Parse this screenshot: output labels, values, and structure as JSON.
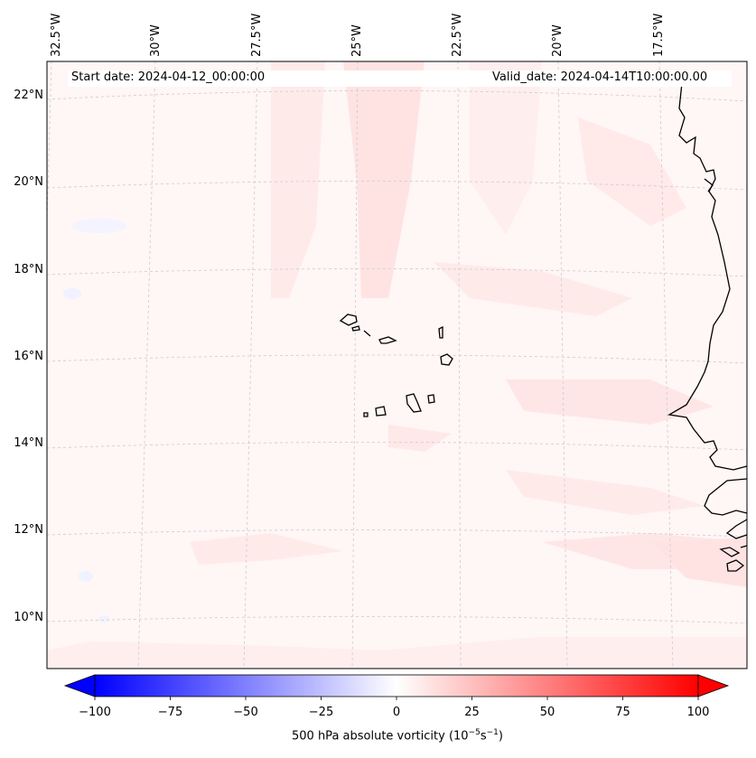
{
  "map": {
    "start_date_label": "Start date: 2024-04-12_00:00:00",
    "valid_date_label": "Valid_date: 2024-04-14T10:00:00.00",
    "longitude_labels": [
      "32.5°W",
      "30°W",
      "27.5°W",
      "25°W",
      "22.5°W",
      "20°W",
      "17.5°W"
    ],
    "latitude_labels": [
      "22°N",
      "20°N",
      "18°N",
      "16°N",
      "14°N",
      "12°N",
      "10°N"
    ],
    "field": "500 hPa absolute vorticity",
    "coastline_color": "#000000",
    "gridline_color": "#cccccc"
  },
  "colorbar": {
    "tick_labels": [
      "−100",
      "−75",
      "−50",
      "−25",
      "0",
      "25",
      "50",
      "75",
      "100"
    ],
    "title_prefix": "500 hPa absolute vorticity (10",
    "title_exp1": "−5",
    "title_mid": "s",
    "title_exp2": "−1",
    "title_suffix": ")",
    "min": -100,
    "max": 100,
    "color_low": "#0000ff",
    "color_mid": "#ffffff",
    "color_high": "#ff0000"
  }
}
